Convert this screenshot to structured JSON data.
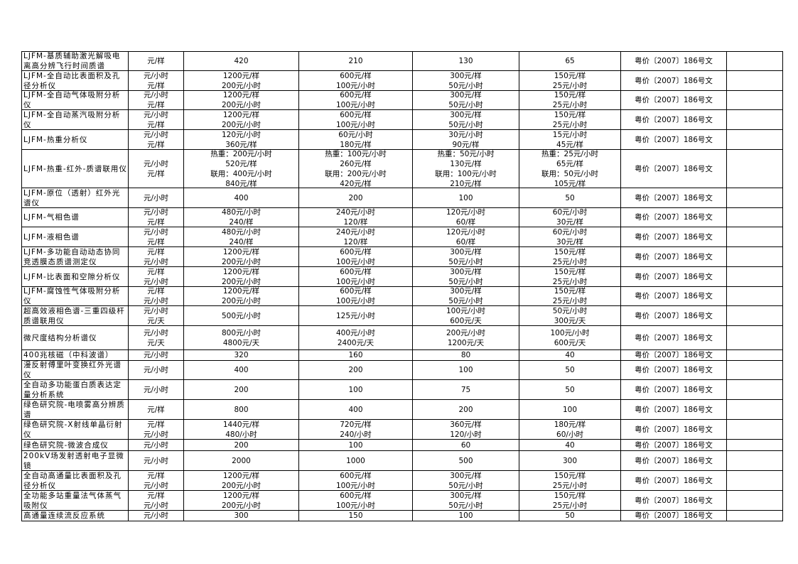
{
  "table": {
    "rows": [
      {
        "name": "LJFM-基质辅助激光解吸电离高分辨飞行时间质谱",
        "unit": [
          "元/样"
        ],
        "p1": [
          "420"
        ],
        "p2": [
          "210"
        ],
        "p3": [
          "130"
        ],
        "p4": [
          "65"
        ],
        "doc": "粤价〔2007〕186号文",
        "note": ""
      },
      {
        "name": "LJFM-全自动比表面积及孔径分析仪",
        "unit": [
          "元/小时",
          "元/样"
        ],
        "p1": [
          "1200元/样",
          "200元/小时"
        ],
        "p2": [
          "600元/样",
          "100元/小时"
        ],
        "p3": [
          "300元/样",
          "50元/小时"
        ],
        "p4": [
          "150元/样",
          "25元/小时"
        ],
        "doc": "粤价〔2007〕186号文",
        "note": ""
      },
      {
        "name": "LJFM-全自动气体吸附分析仪",
        "unit": [
          "元/小时",
          "元/样"
        ],
        "p1": [
          "1200元/样",
          "200元/小时"
        ],
        "p2": [
          "600元/样",
          "100元/小时"
        ],
        "p3": [
          "300元/样",
          "50元/小时"
        ],
        "p4": [
          "150元/样",
          "25元/小时"
        ],
        "doc": "粤价〔2007〕186号文",
        "note": ""
      },
      {
        "name": "LJFM-全自动蒸汽吸附分析仪",
        "unit": [
          "元/小时",
          "元/样"
        ],
        "p1": [
          "1200元/样",
          "200元/小时"
        ],
        "p2": [
          "600元/样",
          "100元/小时"
        ],
        "p3": [
          "300元/样",
          "50元/小时"
        ],
        "p4": [
          "150元/样",
          "25元/小时"
        ],
        "doc": "粤价〔2007〕186号文",
        "note": ""
      },
      {
        "name": "LJFM-热重分析仪",
        "unit": [
          "元/小时",
          "元/样"
        ],
        "p1": [
          "120元/小时",
          "360元/样"
        ],
        "p2": [
          "60元/小时",
          "180元/样"
        ],
        "p3": [
          "30元/小时",
          "90元/样"
        ],
        "p4": [
          "15元/小时",
          "45元/样"
        ],
        "doc": "粤价〔2007〕186号文",
        "note": ""
      },
      {
        "name": "LJFM-热重-红外-质谱联用仪",
        "unit": [
          "元/小时",
          "元/样"
        ],
        "p1": [
          "热重：200元/小时",
          "520元/样",
          "联用：400元/小时",
          "840元/样"
        ],
        "p2": [
          "热重：100元/小时",
          "260元/样",
          "联用：200元/小时",
          "420元/样"
        ],
        "p3": [
          "热重：50元/小时",
          "130元/样",
          "联用：100元/小时",
          "210元/样"
        ],
        "p4": [
          "热重：25元/小时",
          "65元/样",
          "联用：50元/小时",
          "105元/样"
        ],
        "doc": "粤价〔2007〕186号文",
        "note": ""
      },
      {
        "name": "LJFM-原位（透射）红外光谱仪",
        "unit": [
          "元/小时"
        ],
        "p1": [
          "400"
        ],
        "p2": [
          "200"
        ],
        "p3": [
          "100"
        ],
        "p4": [
          "50"
        ],
        "doc": "粤价〔2007〕186号文",
        "note": ""
      },
      {
        "name": "LJFM-气相色谱",
        "unit": [
          "元/小时",
          "元/样"
        ],
        "p1": [
          "480元/小时",
          "240/样"
        ],
        "p2": [
          "240元/小时",
          "120/样"
        ],
        "p3": [
          "120元/小时",
          "60/样"
        ],
        "p4": [
          "60元/小时",
          "30元/样"
        ],
        "doc": "粤价〔2007〕186号文",
        "note": ""
      },
      {
        "name": "LJFM-液相色谱",
        "unit": [
          "元/小时",
          "元/样"
        ],
        "p1": [
          "480元/小时",
          "240/样"
        ],
        "p2": [
          "240元/小时",
          "120/样"
        ],
        "p3": [
          "120元/小时",
          "60/样"
        ],
        "p4": [
          "60元/小时",
          "30元/样"
        ],
        "doc": "粤价〔2007〕186号文",
        "note": ""
      },
      {
        "name": "LJFM-多功能自动动态协同竞透膜态质谱测定仪",
        "unit": [
          "元/样",
          "元/小时"
        ],
        "p1": [
          "1200元/样",
          "200元/小时"
        ],
        "p2": [
          "600元/样",
          "100元/小时"
        ],
        "p3": [
          "300元/样",
          "50元/小时"
        ],
        "p4": [
          "150元/样",
          "25元/小时"
        ],
        "doc": "粤价〔2007〕186号文",
        "note": ""
      },
      {
        "name": "LJFM-比表面和空隙分析仪",
        "unit": [
          "元/样",
          "元/小时"
        ],
        "p1": [
          "1200元/样",
          "200元/小时"
        ],
        "p2": [
          "600元/样",
          "100元/小时"
        ],
        "p3": [
          "300元/样",
          "50元/小时"
        ],
        "p4": [
          "150元/样",
          "25元/小时"
        ],
        "doc": "粤价〔2007〕186号文",
        "note": ""
      },
      {
        "name": "LJFM-腐蚀性气体吸附分析仪",
        "unit": [
          "元/样",
          "元/小时"
        ],
        "p1": [
          "1200元/样",
          "200元/小时"
        ],
        "p2": [
          "600元/样",
          "100元/小时"
        ],
        "p3": [
          "300元/样",
          "50元/小时"
        ],
        "p4": [
          "150元/样",
          "25元/小时"
        ],
        "doc": "粤价〔2007〕186号文",
        "note": ""
      },
      {
        "name": "超高效液相色谱-三重四级杆质谱联用仪",
        "unit": [
          "元/小时",
          "元/天"
        ],
        "p1": [
          "500元/小时"
        ],
        "p2": [
          "125元/小时"
        ],
        "p3": [
          "100元/小时",
          "600元/天"
        ],
        "p4": [
          "50元/小时",
          "300元/天"
        ],
        "doc": "粤价〔2007〕186号文",
        "note": ""
      },
      {
        "name": "微尺度结构分析谱仪",
        "unit": [
          "元/小时",
          "元/天"
        ],
        "p1": [
          "800元/小时",
          "4800元/天"
        ],
        "p2": [
          "400元/小时",
          "2400元/天"
        ],
        "p3": [
          "200元/小时",
          "1200元/天"
        ],
        "p4": [
          "100元/小时",
          "600元/天"
        ],
        "doc": "粤价〔2007〕186号文",
        "note": ""
      },
      {
        "name": "400兆核磁（中科波谱）",
        "unit": [
          "元/小时"
        ],
        "p1": [
          "320"
        ],
        "p2": [
          "160"
        ],
        "p3": [
          "80"
        ],
        "p4": [
          "40"
        ],
        "doc": "粤价〔2007〕186号文",
        "note": ""
      },
      {
        "name": "漫反射傅里叶变换红外光谱仪",
        "unit": [
          "元/小时"
        ],
        "p1": [
          "400"
        ],
        "p2": [
          "200"
        ],
        "p3": [
          "100"
        ],
        "p4": [
          "50"
        ],
        "doc": "粤价〔2007〕186号文",
        "note": ""
      },
      {
        "name": "全自动多功能蛋白质表达定量分析系统",
        "unit": [
          "元/小时"
        ],
        "p1": [
          "200"
        ],
        "p2": [
          "100"
        ],
        "p3": [
          "75"
        ],
        "p4": [
          "50"
        ],
        "doc": "粤价〔2007〕186号文",
        "note": ""
      },
      {
        "name": "绿色研究院-电喷雾高分辨质谱",
        "unit": [
          "元/样"
        ],
        "p1": [
          "800"
        ],
        "p2": [
          "400"
        ],
        "p3": [
          "200"
        ],
        "p4": [
          "100"
        ],
        "doc": "粤价〔2007〕186号文",
        "note": ""
      },
      {
        "name": "绿色研究院-X射线单晶衍射仪",
        "unit": [
          "元/样",
          "元/小时"
        ],
        "p1": [
          "1440元/样",
          "480/小时"
        ],
        "p2": [
          "720元/样",
          "240/小时"
        ],
        "p3": [
          "360元/样",
          "120/小时"
        ],
        "p4": [
          "180元/样",
          "60/小时"
        ],
        "doc": "粤价〔2007〕186号文",
        "note": ""
      },
      {
        "name": "绿色研究院-微波合成仪",
        "unit": [
          "元/小时"
        ],
        "p1": [
          "200"
        ],
        "p2": [
          "100"
        ],
        "p3": [
          "60"
        ],
        "p4": [
          "40"
        ],
        "doc": "粤价〔2007〕186号文",
        "note": ""
      },
      {
        "name": "200kV场发射透射电子显微镜",
        "unit": [
          "元/小时"
        ],
        "p1": [
          "2000"
        ],
        "p2": [
          "1000"
        ],
        "p3": [
          "500"
        ],
        "p4": [
          "300"
        ],
        "doc": "粤价〔2007〕186号文",
        "note": ""
      },
      {
        "name": "全自动高通量比表面积及孔径分析仪",
        "unit": [
          "元/样",
          "元/小时"
        ],
        "p1": [
          "1200元/样",
          "200元/小时"
        ],
        "p2": [
          "600元/样",
          "100元/小时"
        ],
        "p3": [
          "300元/样",
          "50元/小时"
        ],
        "p4": [
          "150元/样",
          "25元/小时"
        ],
        "doc": "粤价〔2007〕186号文",
        "note": ""
      },
      {
        "name": "全功能多站重量法气体蒸气吸附仪",
        "unit": [
          "元/样",
          "元/小时"
        ],
        "p1": [
          "1200元/样",
          "200元/小时"
        ],
        "p2": [
          "600元/样",
          "100元/小时"
        ],
        "p3": [
          "300元/样",
          "50元/小时"
        ],
        "p4": [
          "150元/样",
          "25元/小时"
        ],
        "doc": "粤价〔2007〕186号文",
        "note": ""
      },
      {
        "name": "高通量连续流反应系统",
        "unit": [
          "元/小时"
        ],
        "p1": [
          "300"
        ],
        "p2": [
          "150"
        ],
        "p3": [
          "100"
        ],
        "p4": [
          "50"
        ],
        "doc": "粤价〔2007〕186号文",
        "note": ""
      }
    ]
  }
}
